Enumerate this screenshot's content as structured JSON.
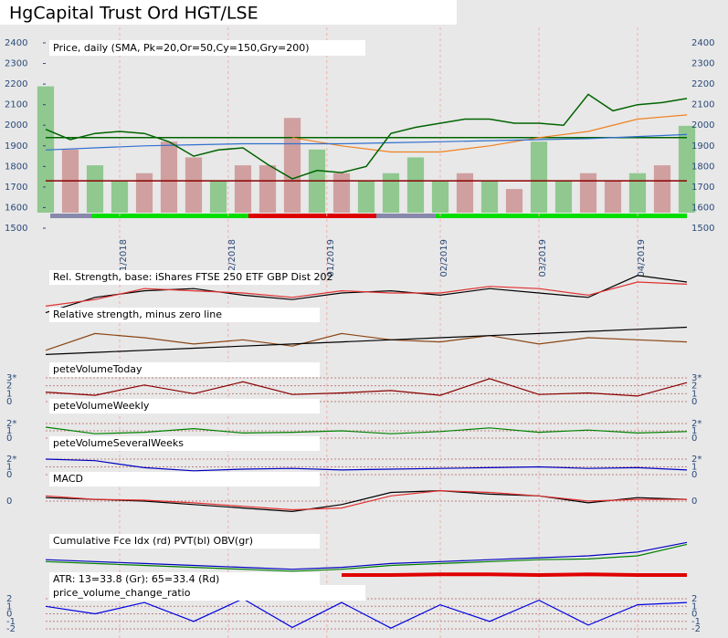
{
  "chart_data": [
    {
      "type": "price",
      "title": "HgCapital Trust Ord HGT/LSE",
      "subtitle": "Price, daily (SMA, Pk=20,Or=50,Cy=150,Gry=200)",
      "x": [
        0,
        5,
        10,
        15,
        20,
        25,
        30,
        35,
        40,
        45,
        50,
        55,
        60,
        65,
        70,
        75,
        80,
        85,
        90,
        95,
        100,
        105,
        110,
        115,
        120,
        125,
        130
      ],
      "xlim": [
        0,
        130
      ],
      "xticks": [
        {
          "value": 15,
          "label": "11/2018"
        },
        {
          "value": 37,
          "label": "12/2018"
        },
        {
          "value": 57,
          "label": "01/2019"
        },
        {
          "value": 80,
          "label": "02/2019"
        },
        {
          "value": 100,
          "label": "03/2019"
        },
        {
          "value": 120,
          "label": "04/2019"
        }
      ],
      "ylim": [
        1500,
        2400
      ],
      "yticks": [
        1500,
        1600,
        1700,
        1800,
        1900,
        2000,
        2100,
        2200,
        2300,
        2400
      ],
      "series": [
        {
          "name": "Price",
          "color": "#006400",
          "values": [
            1980,
            1930,
            1960,
            1970,
            1960,
            1920,
            1850,
            1880,
            1890,
            1810,
            1740,
            1780,
            1770,
            1800,
            1960,
            1990,
            2010,
            2030,
            2030,
            2010,
            2010,
            2000,
            2150,
            2070,
            2100,
            2110,
            2130
          ]
        }
      ],
      "sma": {
        "x": [
          0,
          10,
          20,
          30,
          40,
          50,
          60,
          70,
          80,
          90,
          100,
          110,
          120,
          130
        ],
        "series": [
          {
            "name": "Or=50",
            "color": "#f08020",
            "values": [
              null,
              null,
              null,
              null,
              null,
              1940,
              1900,
              1870,
              1870,
              1900,
              1940,
              1970,
              2030,
              2050
            ]
          },
          {
            "name": "Cy=150",
            "color": "#3070d0",
            "values": [
              1880,
              1890,
              1900,
              1905,
              1910,
              1910,
              1910,
              1915,
              1920,
              1925,
              1930,
              1935,
              1945,
              1955
            ]
          }
        ]
      },
      "levels": [
        {
          "value": 1940,
          "color": "#006400"
        },
        {
          "value": 1730,
          "color": "#8b0000"
        }
      ],
      "volume": {
        "ylim": [
          0,
          100
        ],
        "values": [
          80,
          40,
          30,
          20,
          25,
          45,
          35,
          20,
          30,
          30,
          60,
          40,
          25,
          20,
          25,
          35,
          20,
          25,
          20,
          15,
          45,
          20,
          25,
          20,
          25,
          30,
          55
        ],
        "colors": [
          "#90c890",
          "#d0a0a0",
          "#90c890",
          "#90c890",
          "#d0a0a0",
          "#d0a0a0",
          "#d0a0a0",
          "#90c890",
          "#d0a0a0",
          "#d0a0a0",
          "#d0a0a0",
          "#90c890",
          "#d0a0a0",
          "#90c890",
          "#90c890",
          "#90c890",
          "#90c890",
          "#d0a0a0",
          "#90c890",
          "#d0a0a0",
          "#90c890",
          "#90c890",
          "#d0a0a0",
          "#d0a0a0",
          "#90c890",
          "#d0a0a0",
          "#90c890"
        ]
      }
    },
    {
      "type": "line",
      "title": "Rel. Strength, base: iShares FTSE 250 ETF GBP Dist 202",
      "x": [
        0,
        10,
        20,
        30,
        40,
        50,
        60,
        70,
        80,
        90,
        100,
        110,
        120,
        130
      ],
      "xlim": [
        0,
        130
      ],
      "ylim": [
        0,
        100
      ],
      "series": [
        {
          "color": "#000000",
          "values": [
            5,
            40,
            55,
            60,
            45,
            35,
            50,
            55,
            45,
            60,
            50,
            40,
            90,
            75
          ]
        },
        {
          "color": "#e03030",
          "values": [
            20,
            35,
            60,
            55,
            50,
            40,
            55,
            50,
            50,
            65,
            60,
            45,
            75,
            70
          ]
        }
      ]
    },
    {
      "type": "line",
      "title": "Relative strength, minus zero line",
      "x": [
        0,
        10,
        20,
        30,
        40,
        50,
        60,
        70,
        80,
        90,
        100,
        110,
        120,
        130
      ],
      "xlim": [
        0,
        130
      ],
      "ylim": [
        0,
        100
      ],
      "series": [
        {
          "color": "#8b4513",
          "values": [
            20,
            60,
            50,
            35,
            45,
            30,
            60,
            45,
            40,
            55,
            35,
            50,
            45,
            40
          ]
        },
        {
          "color": "#000000",
          "values": [
            10,
            15,
            20,
            25,
            30,
            35,
            40,
            45,
            50,
            55,
            60,
            65,
            70,
            75
          ]
        }
      ]
    },
    {
      "type": "line",
      "title": "peteVolumeToday",
      "x": [
        0,
        10,
        20,
        30,
        40,
        50,
        60,
        70,
        80,
        90,
        100,
        110,
        120,
        130
      ],
      "xlim": [
        0,
        130
      ],
      "ylim": [
        0,
        3
      ],
      "yticks": [
        0,
        1,
        2,
        {
          "value": 3,
          "label": "3*"
        }
      ],
      "series": [
        {
          "color": "#8b0000",
          "values": [
            1.2,
            0.8,
            2.1,
            1,
            2.5,
            0.9,
            1.1,
            1.4,
            0.8,
            2.9,
            0.9,
            1.1,
            0.7,
            2.4
          ]
        }
      ]
    },
    {
      "type": "line",
      "title": "peteVolumeWeekly",
      "x": [
        0,
        10,
        20,
        30,
        40,
        50,
        60,
        70,
        80,
        90,
        100,
        110,
        120,
        130
      ],
      "xlim": [
        0,
        130
      ],
      "ylim": [
        0,
        2
      ],
      "yticks": [
        0,
        1,
        {
          "value": 2,
          "label": "2*"
        }
      ],
      "series": [
        {
          "color": "#008000",
          "values": [
            1.5,
            0.6,
            0.8,
            1.3,
            0.7,
            0.8,
            1,
            0.6,
            0.9,
            1.4,
            0.8,
            1.1,
            0.7,
            0.9
          ]
        }
      ]
    },
    {
      "type": "line",
      "title": "peteVolumeSeveralWeeks",
      "x": [
        0,
        10,
        20,
        30,
        40,
        50,
        60,
        70,
        80,
        90,
        100,
        110,
        120,
        130
      ],
      "xlim": [
        0,
        130
      ],
      "ylim": [
        0,
        2
      ],
      "yticks": [
        0,
        1,
        {
          "value": 2,
          "label": "2*"
        }
      ],
      "series": [
        {
          "color": "#0000c0",
          "values": [
            2,
            1.8,
            0.9,
            0.5,
            0.7,
            0.8,
            0.6,
            0.7,
            0.8,
            0.9,
            1,
            0.8,
            0.9,
            0.6
          ]
        }
      ]
    },
    {
      "type": "line",
      "title": "MACD",
      "x": [
        0,
        10,
        20,
        30,
        40,
        50,
        60,
        70,
        80,
        90,
        100,
        110,
        120,
        130
      ],
      "xlim": [
        0,
        130
      ],
      "ylim": [
        -1,
        1
      ],
      "yticks": [
        0
      ],
      "series": [
        {
          "color": "#000000",
          "values": [
            0.2,
            0.1,
            0,
            -0.2,
            -0.4,
            -0.6,
            -0.2,
            0.5,
            0.6,
            0.4,
            0.3,
            -0.1,
            0.2,
            0.1
          ]
        },
        {
          "color": "#e03030",
          "values": [
            0.3,
            0.1,
            0.05,
            -0.1,
            -0.3,
            -0.5,
            -0.4,
            0.3,
            0.6,
            0.5,
            0.3,
            0,
            0.1,
            0.1
          ]
        }
      ]
    },
    {
      "type": "line",
      "title": "Cumulative Fce Idx (rd) PVT(bl) OBV(gr)",
      "x": [
        0,
        10,
        20,
        30,
        40,
        50,
        60,
        70,
        80,
        90,
        100,
        110,
        120,
        130
      ],
      "xlim": [
        0,
        130
      ],
      "ylim": [
        0,
        100
      ],
      "series": [
        {
          "color": "#0000c0",
          "values": [
            40,
            35,
            30,
            25,
            20,
            15,
            20,
            30,
            35,
            40,
            45,
            50,
            60,
            85
          ]
        },
        {
          "color": "#008000",
          "values": [
            35,
            30,
            25,
            20,
            15,
            10,
            15,
            25,
            30,
            35,
            40,
            42,
            50,
            80
          ]
        },
        {
          "color": "#e00000",
          "values": [
            null,
            null,
            null,
            null,
            null,
            null,
            0,
            0,
            2,
            2,
            0,
            2,
            0,
            0
          ]
        }
      ]
    },
    {
      "type": "line",
      "title": "ATR: 13=33.8 (Gr): 65=33.4 (Rd)",
      "subtitle": "price_volume_change_ratio",
      "x": [
        0,
        10,
        20,
        30,
        40,
        50,
        60,
        70,
        80,
        90,
        100,
        110,
        120,
        130
      ],
      "xlim": [
        0,
        130
      ],
      "ylim": [
        -2,
        2
      ],
      "yticks": [
        -2,
        -1,
        0,
        1,
        2
      ],
      "series": [
        {
          "color": "#0000e0",
          "values": [
            1,
            0,
            1.5,
            -1,
            2,
            -1.8,
            1.5,
            -1.9,
            1.2,
            -1,
            1.8,
            -1.5,
            1.2,
            1.5
          ]
        }
      ]
    }
  ]
}
